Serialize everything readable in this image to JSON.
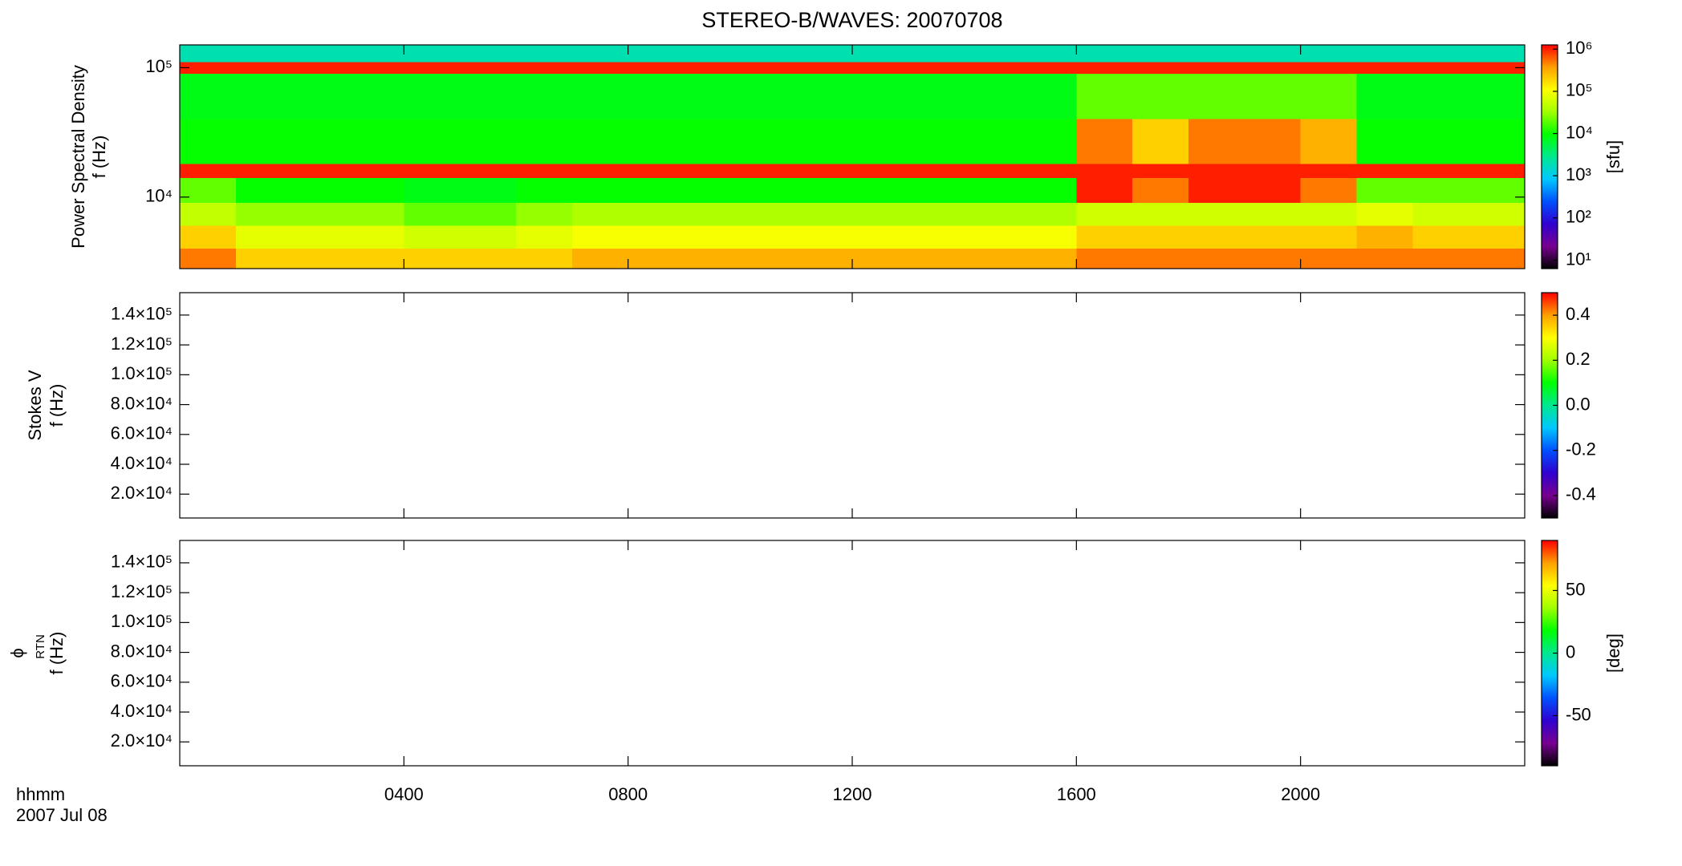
{
  "title": "STEREO-B/WAVES: 20070708",
  "x_label": "hhmm",
  "date_label": "2007 Jul 08",
  "xlim": [
    0,
    24
  ],
  "xticks": [
    {
      "value": 4,
      "label": "0400"
    },
    {
      "value": 8,
      "label": "0800"
    },
    {
      "value": 12,
      "label": "1200"
    },
    {
      "value": 16,
      "label": "1600"
    },
    {
      "value": 20,
      "label": "2000"
    }
  ],
  "colormap": [
    "#000000",
    "#780090",
    "#3000d0",
    "#0050ff",
    "#00c8ff",
    "#00e890",
    "#00ff00",
    "#a0ff00",
    "#ffff00",
    "#ffa000",
    "#ff0000"
  ],
  "chart_data": [
    {
      "type": "heatmap",
      "ylabel": [
        "Power Spectral Density",
        "f (Hz)"
      ],
      "ylog": true,
      "ylim": [
        2800,
        150000
      ],
      "yticks": [
        {
          "value": 10000,
          "label": "10⁴"
        },
        {
          "value": 100000,
          "label": "10⁵"
        }
      ],
      "clog": true,
      "clim": [
        6.3,
        1260000
      ],
      "cticks": [
        {
          "value": 10,
          "label": "10¹"
        },
        {
          "value": 100,
          "label": "10²"
        },
        {
          "value": 1000,
          "label": "10³"
        },
        {
          "value": 10000,
          "label": "10⁴"
        },
        {
          "value": 100000,
          "label": "10⁵"
        },
        {
          "value": 1000000,
          "label": "10⁶"
        }
      ],
      "clabel": "[sfu]",
      "x": [
        0,
        1,
        2,
        3,
        4,
        5,
        6,
        7,
        8,
        9,
        10,
        11,
        12,
        13,
        14,
        15,
        16,
        17,
        18,
        19,
        20,
        21,
        22,
        23,
        24
      ],
      "y": [
        2800,
        4000,
        6000,
        9000,
        14000,
        18000,
        40000,
        90000,
        110000,
        150000
      ],
      "values": [
        [
          500000,
          200000,
          200000,
          200000,
          200000,
          200000,
          200000,
          300000,
          300000,
          300000,
          300000,
          300000,
          300000,
          300000,
          300000,
          300000,
          500000,
          500000,
          500000,
          500000,
          500000,
          500000,
          500000,
          500000
        ],
        [
          200000,
          80000,
          80000,
          80000,
          60000,
          60000,
          80000,
          100000,
          100000,
          100000,
          100000,
          100000,
          100000,
          100000,
          100000,
          100000,
          200000,
          200000,
          200000,
          200000,
          200000,
          300000,
          200000,
          200000
        ],
        [
          50000,
          30000,
          30000,
          30000,
          20000,
          20000,
          30000,
          40000,
          40000,
          40000,
          40000,
          40000,
          40000,
          40000,
          40000,
          40000,
          60000,
          60000,
          60000,
          60000,
          60000,
          80000,
          60000,
          60000
        ],
        [
          20000,
          10000,
          10000,
          10000,
          8000,
          8000,
          10000,
          10000,
          10000,
          10000,
          10000,
          10000,
          10000,
          10000,
          10000,
          10000,
          1000000,
          500000,
          1000000,
          1000000,
          500000,
          20000,
          20000,
          20000
        ],
        [
          1000000,
          1000000,
          1000000,
          1000000,
          1000000,
          1000000,
          1000000,
          1000000,
          1000000,
          1000000,
          1000000,
          1000000,
          1000000,
          1000000,
          1000000,
          1000000,
          1000000,
          1000000,
          1000000,
          1000000,
          1000000,
          1000000,
          1000000,
          1000000
        ],
        [
          10000,
          10000,
          10000,
          10000,
          10000,
          10000,
          10000,
          10000,
          10000,
          10000,
          10000,
          10000,
          10000,
          10000,
          10000,
          10000,
          500000,
          200000,
          500000,
          500000,
          300000,
          10000,
          10000,
          10000
        ],
        [
          8000,
          8000,
          8000,
          8000,
          8000,
          8000,
          8000,
          8000,
          8000,
          8000,
          8000,
          8000,
          8000,
          8000,
          8000,
          8000,
          20000,
          20000,
          20000,
          20000,
          20000,
          8000,
          8000,
          8000
        ],
        [
          1000000,
          1000000,
          1000000,
          1000000,
          1000000,
          1000000,
          1000000,
          1000000,
          1000000,
          1000000,
          1000000,
          1000000,
          1000000,
          1000000,
          1000000,
          1000000,
          1000000,
          1000000,
          1000000,
          1000000,
          1000000,
          1000000,
          1000000,
          1000000
        ],
        [
          2000,
          2000,
          2000,
          2000,
          2000,
          2000,
          2000,
          2000,
          2000,
          2000,
          2000,
          2000,
          2000,
          2000,
          2000,
          2000,
          2000,
          2000,
          2000,
          2000,
          2000,
          2000,
          2000,
          2000
        ]
      ]
    },
    {
      "type": "heatmap",
      "ylabel": [
        "Stokes V",
        "f (Hz)"
      ],
      "ylog": false,
      "ylim": [
        4000,
        155000
      ],
      "yticks": [
        {
          "value": 20000,
          "label": "2.0×10⁴"
        },
        {
          "value": 40000,
          "label": "4.0×10⁴"
        },
        {
          "value": 60000,
          "label": "6.0×10⁴"
        },
        {
          "value": 80000,
          "label": "8.0×10⁴"
        },
        {
          "value": 100000,
          "label": "1.0×10⁵"
        },
        {
          "value": 120000,
          "label": "1.2×10⁵"
        },
        {
          "value": 140000,
          "label": "1.4×10⁵"
        }
      ],
      "clog": false,
      "clim": [
        -0.5,
        0.5
      ],
      "cticks": [
        -0.4,
        -0.2,
        {
          "value": 0,
          "label": "0.0"
        },
        0.2,
        0.4
      ]
    },
    {
      "type": "heatmap",
      "ylabel": [
        "ϕ",
        "f (Hz)"
      ],
      "ylabel_sub": "RTN",
      "ylog": false,
      "ylim": [
        4000,
        155000
      ],
      "yticks": [
        {
          "value": 20000,
          "label": "2.0×10⁴"
        },
        {
          "value": 40000,
          "label": "4.0×10⁴"
        },
        {
          "value": 60000,
          "label": "6.0×10⁴"
        },
        {
          "value": 80000,
          "label": "8.0×10⁴"
        },
        {
          "value": 100000,
          "label": "1.0×10⁵"
        },
        {
          "value": 120000,
          "label": "1.2×10⁵"
        },
        {
          "value": 140000,
          "label": "1.4×10⁵"
        }
      ],
      "clog": false,
      "clim": [
        -90,
        90
      ],
      "cticks": [
        -50,
        0,
        50
      ],
      "clabel": "[deg]"
    }
  ]
}
